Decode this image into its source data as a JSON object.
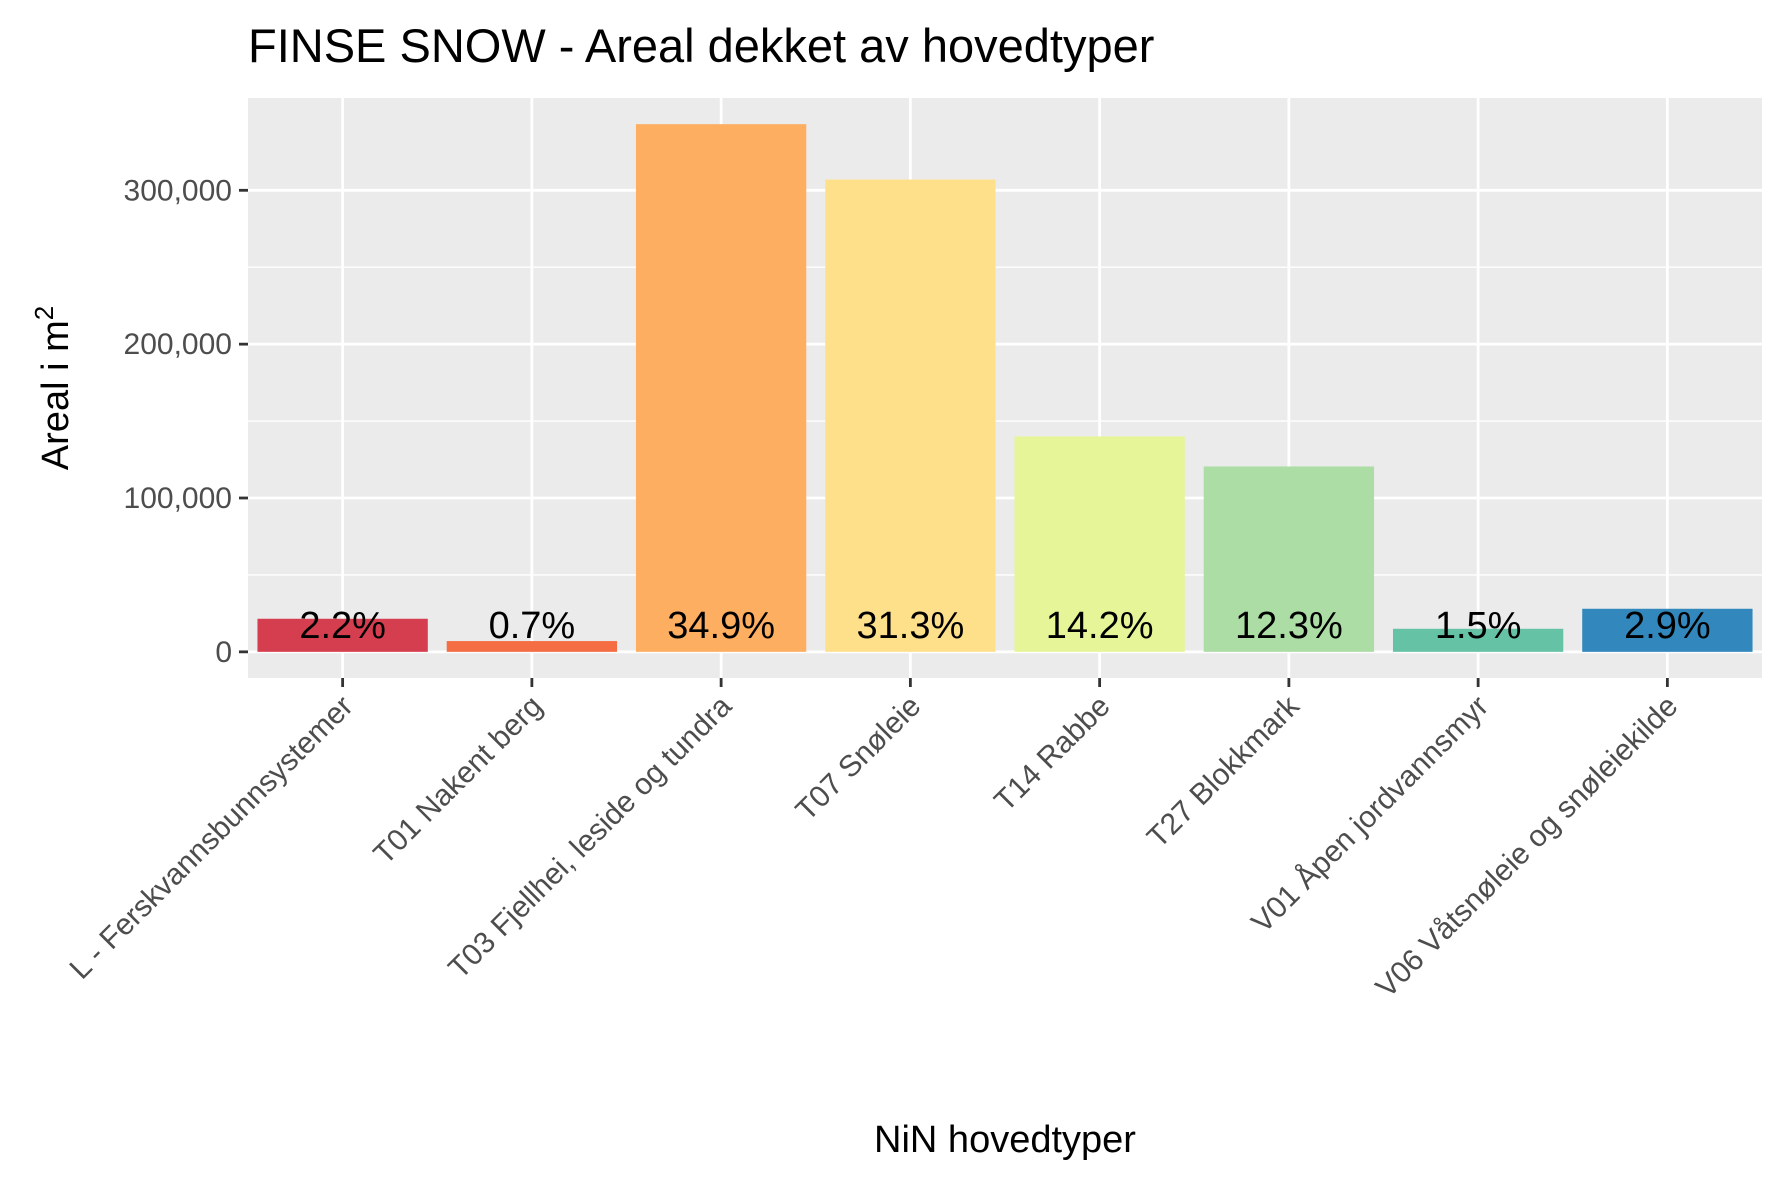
{
  "chart_data": {
    "type": "bar",
    "title": "FINSE SNOW - Areal dekket av hovedtyper",
    "xlabel": "NiN hovedtyper",
    "ylabel_main": "Areal i m",
    "ylabel_sup": "2",
    "ylim": [
      -17000,
      360000
    ],
    "yticks": [
      0,
      100000,
      200000,
      300000
    ],
    "ytick_labels": [
      "0",
      "100,000",
      "200,000",
      "300,000"
    ],
    "grid": true,
    "legend": "none",
    "categories": [
      "L - Ferskvannsbunnsystemer",
      "T01 Nakent berg",
      "T03 Fjellhei, leside og tundra",
      "T07 Snøleie",
      "T14 Rabbe",
      "T27 Blokkmark",
      "V01 Åpen jordvannsmyr",
      "V06 Våtsnøleie og snøleiekilde"
    ],
    "values": [
      21500,
      7000,
      343000,
      307000,
      140000,
      120500,
      15000,
      28000
    ],
    "labels": [
      "2.2%",
      "0.7%",
      "34.9%",
      "31.3%",
      "14.2%",
      "12.3%",
      "1.5%",
      "2.9%"
    ],
    "colors": [
      "#D53E4F",
      "#F46D43",
      "#FDAE61",
      "#FEE08B",
      "#E6F598",
      "#ABDDA4",
      "#66C2A5",
      "#3288BD"
    ]
  }
}
